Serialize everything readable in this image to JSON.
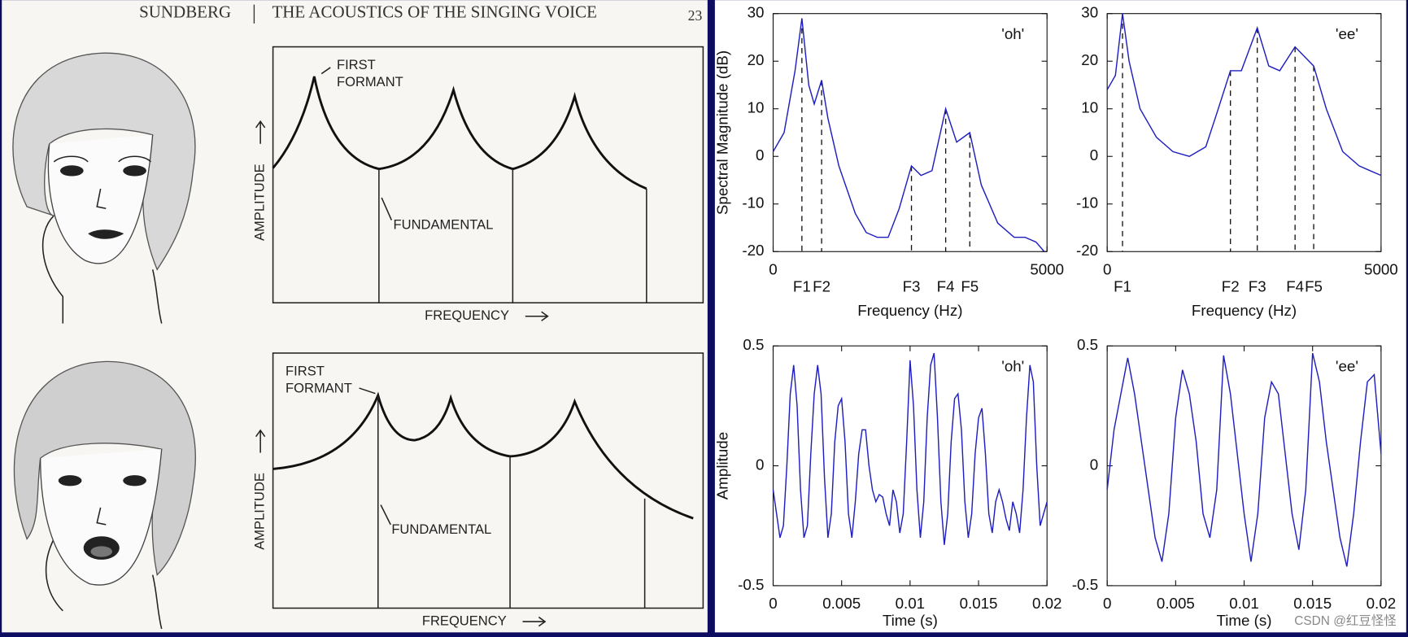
{
  "page": {
    "header": {
      "author": "SUNDBERG",
      "title": "THE ACOUSTICS OF THE SINGING VOICE",
      "page_number": "23"
    },
    "diagrams": [
      {
        "first_formant": [
          "FIRST",
          "FORMANT"
        ],
        "y_label": "AMPLITUDE",
        "fundamental": "FUNDAMENTAL",
        "x_label": "FREQUENCY"
      },
      {
        "first_formant": [
          "FIRST",
          "FORMANT"
        ],
        "y_label": "AMPLITUDE",
        "fundamental": "FUNDAMENTAL",
        "x_label": "FREQUENCY"
      }
    ],
    "watermark": "CSDN @红豆怪怪"
  },
  "chart_data": [
    {
      "type": "line",
      "label": "'oh'",
      "ylabel": "Spectral Magnitude (dB)",
      "xlabel": "Frequency (Hz)",
      "color": "#1f1fbf",
      "x": [
        0,
        200,
        400,
        525,
        650,
        750,
        885,
        1000,
        1200,
        1500,
        1700,
        1900,
        2100,
        2300,
        2525,
        2700,
        2900,
        3150,
        3350,
        3590,
        3800,
        4100,
        4400,
        4600,
        4800,
        4950
      ],
      "values": [
        1,
        5,
        18,
        29,
        15,
        11,
        16,
        8,
        -2,
        -12,
        -16,
        -17,
        -17,
        -11,
        -2,
        -4,
        -3,
        10,
        3,
        5,
        -6,
        -14,
        -17,
        -17,
        -18,
        -20
      ],
      "xlim": [
        0,
        5000
      ],
      "ylim": [
        -20,
        30
      ],
      "xticks": [
        0,
        {
          "value": 525,
          "label": "F1"
        },
        {
          "value": 885,
          "label": "F2"
        },
        {
          "value": 2525,
          "label": "F3"
        },
        {
          "value": 3150,
          "label": "F4"
        },
        {
          "value": 3590,
          "label": "F5"
        },
        5000
      ],
      "yticks": [
        -20,
        -10,
        0,
        10,
        20,
        30
      ]
    },
    {
      "type": "line",
      "label": "'ee'",
      "xlabel": "Frequency (Hz)",
      "color": "#1f1fbf",
      "x": [
        0,
        150,
        280,
        400,
        600,
        900,
        1200,
        1500,
        1800,
        2000,
        2250,
        2450,
        2740,
        2950,
        3150,
        3430,
        3600,
        3770,
        4000,
        4300,
        4600,
        4800,
        5000
      ],
      "values": [
        14,
        17,
        30,
        20,
        10,
        4,
        1,
        0,
        2,
        9,
        18,
        18,
        27,
        19,
        18,
        23,
        21,
        19,
        10,
        1,
        -2,
        -3,
        -4
      ],
      "xlim": [
        0,
        5000
      ],
      "ylim": [
        -20,
        30
      ],
      "xticks": [
        0,
        {
          "value": 280,
          "label": "F1"
        },
        {
          "value": 2250,
          "label": "F2"
        },
        {
          "value": 2740,
          "label": "F3"
        },
        {
          "value": 3430,
          "label": "F4"
        },
        {
          "value": 3770,
          "label": "F5"
        },
        5000
      ],
      "yticks": [
        -20,
        -10,
        0,
        10,
        20,
        30
      ]
    },
    {
      "type": "line",
      "label": "'oh'",
      "ylabel": "Amplitude",
      "xlabel": "Time (s)",
      "color": "#1f1fbf",
      "x": [
        0,
        0.00025,
        0.0005,
        0.00075,
        0.001,
        0.00125,
        0.0015,
        0.00175,
        0.002,
        0.00225,
        0.0025,
        0.00275,
        0.003,
        0.00325,
        0.0035,
        0.00375,
        0.004,
        0.00425,
        0.0045,
        0.00475,
        0.005,
        0.00525,
        0.0055,
        0.00575,
        0.006,
        0.00625,
        0.0065,
        0.00675,
        0.007,
        0.00725,
        0.0075,
        0.00775,
        0.008,
        0.00825,
        0.0085,
        0.00875,
        0.009,
        0.00925,
        0.0095,
        0.00975,
        0.01,
        0.01025,
        0.0105,
        0.01075,
        0.011,
        0.01125,
        0.0115,
        0.01175,
        0.012,
        0.01225,
        0.0125,
        0.01275,
        0.013,
        0.01325,
        0.0135,
        0.01375,
        0.014,
        0.01425,
        0.0145,
        0.01475,
        0.015,
        0.01525,
        0.0155,
        0.01575,
        0.016,
        0.01625,
        0.0165,
        0.01675,
        0.017,
        0.01725,
        0.0175,
        0.01775,
        0.018,
        0.01825,
        0.0185,
        0.01875,
        0.019,
        0.01925,
        0.0195,
        0.01975,
        0.02
      ],
      "values": [
        -0.1,
        -0.2,
        -0.3,
        -0.25,
        0.0,
        0.3,
        0.42,
        0.25,
        -0.1,
        -0.3,
        -0.25,
        0.05,
        0.3,
        0.42,
        0.3,
        -0.05,
        -0.3,
        -0.2,
        0.1,
        0.25,
        0.28,
        0.1,
        -0.2,
        -0.3,
        -0.15,
        0.05,
        0.15,
        0.15,
        0.0,
        -0.1,
        -0.15,
        -0.12,
        -0.13,
        -0.2,
        -0.25,
        -0.1,
        -0.15,
        -0.28,
        -0.2,
        0.1,
        0.44,
        0.25,
        -0.1,
        -0.3,
        -0.15,
        0.2,
        0.42,
        0.47,
        0.2,
        -0.15,
        -0.33,
        -0.2,
        0.1,
        0.28,
        0.3,
        0.15,
        -0.15,
        -0.3,
        -0.2,
        0.05,
        0.2,
        0.24,
        0.05,
        -0.2,
        -0.28,
        -0.15,
        -0.1,
        -0.15,
        -0.22,
        -0.27,
        -0.15,
        -0.2,
        -0.28,
        -0.1,
        0.2,
        0.42,
        0.35,
        0.0,
        -0.25,
        -0.2,
        -0.15
      ],
      "xlim": [
        0,
        0.02
      ],
      "ylim": [
        -0.5,
        0.5
      ],
      "xticks": [
        0,
        0.005,
        0.01,
        0.015,
        0.02
      ],
      "yticks": [
        -0.5,
        0,
        0.5
      ]
    },
    {
      "type": "line",
      "label": "'ee'",
      "xlabel": "Time (s)",
      "color": "#1f1fbf",
      "x": [
        0,
        0.0005,
        0.001,
        0.0015,
        0.002,
        0.0025,
        0.003,
        0.0035,
        0.004,
        0.0045,
        0.005,
        0.0055,
        0.006,
        0.0065,
        0.007,
        0.0075,
        0.008,
        0.0085,
        0.009,
        0.0095,
        0.01,
        0.0105,
        0.011,
        0.0115,
        0.012,
        0.0125,
        0.013,
        0.0135,
        0.014,
        0.0145,
        0.015,
        0.0155,
        0.016,
        0.0165,
        0.017,
        0.0175,
        0.018,
        0.0185,
        0.019,
        0.0195,
        0.02
      ],
      "values": [
        -0.1,
        0.15,
        0.3,
        0.45,
        0.3,
        0.1,
        -0.1,
        -0.3,
        -0.4,
        -0.2,
        0.2,
        0.4,
        0.3,
        0.1,
        -0.2,
        -0.3,
        -0.1,
        0.46,
        0.3,
        0.05,
        -0.2,
        -0.4,
        -0.2,
        0.2,
        0.35,
        0.3,
        0.05,
        -0.2,
        -0.35,
        -0.1,
        0.47,
        0.35,
        0.1,
        -0.1,
        -0.3,
        -0.42,
        -0.2,
        0.1,
        0.35,
        0.38,
        0.05
      ],
      "xlim": [
        0,
        0.02
      ],
      "ylim": [
        -0.5,
        0.5
      ],
      "xticks": [
        0,
        0.005,
        0.01,
        0.015,
        0.02
      ],
      "yticks": [
        -0.5,
        0,
        0.5
      ]
    }
  ]
}
